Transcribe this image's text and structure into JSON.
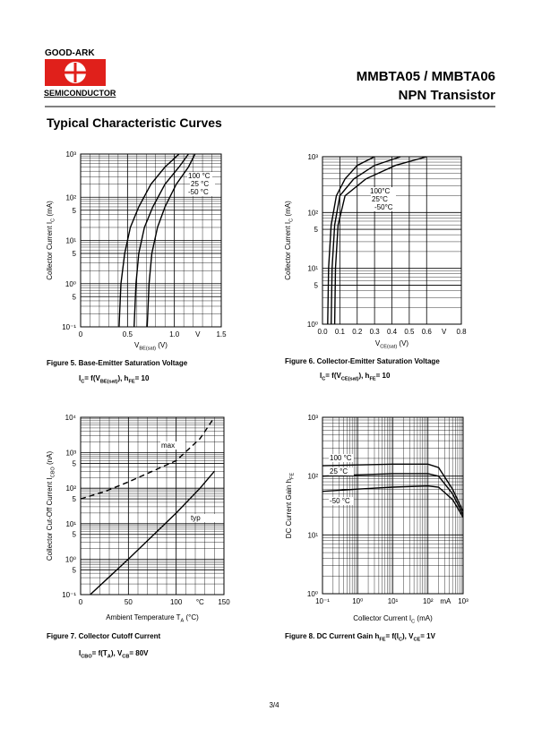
{
  "logo": {
    "top": "GOOD-ARK",
    "bottom": "SEMICONDUCTOR"
  },
  "header": {
    "part": "MMBTA05 / MMBTA06",
    "kind": "NPN Transistor"
  },
  "section_title": "Typical Characteristic Curves",
  "page_number": "3/4",
  "chart_data": [
    {
      "type": "line",
      "log_y": true,
      "log_x": false,
      "caption": [
        "Figure 5. Base-Emitter Saturation Voltage"
      ],
      "formula": [
        "I",
        {
          "sub": "C"
        },
        "= f(V",
        {
          "sub": "BE(sat)"
        },
        "), h",
        {
          "sub": "FE"
        },
        "= 10"
      ],
      "y_label": [
        "Collector Current I",
        {
          "sub": "C"
        },
        " (mA)"
      ],
      "x_label": [
        "V",
        {
          "sub": "BE(sat)"
        },
        " (V)"
      ],
      "x_unit": "V",
      "xlim": [
        0,
        1.5
      ],
      "xticks": [
        0,
        0.5,
        {
          "value": 1,
          "label": "1.0"
        },
        1.5
      ],
      "ylim": [
        0.1,
        1000
      ],
      "yticks": [
        {
          "value": 1000,
          "label": "10³"
        },
        {
          "value": 100,
          "label": "10²"
        },
        {
          "value": 50,
          "label": "5"
        },
        {
          "value": 10,
          "label": "10¹"
        },
        5,
        {
          "value": 1,
          "label": "10⁰"
        },
        {
          "value": 0.5,
          "label": "5"
        },
        {
          "value": 0.1,
          "label": "10⁻¹"
        }
      ],
      "grid": true,
      "series": [
        {
          "name": "100 °C",
          "color": "#000",
          "x": [
            0.41,
            0.43,
            0.47,
            0.53,
            0.62,
            0.75,
            0.9,
            1.05
          ],
          "values": [
            0.1,
            1,
            5,
            20,
            60,
            200,
            500,
            1000
          ]
        },
        {
          "name": "25 °C",
          "color": "#000",
          "x": [
            0.57,
            0.59,
            0.62,
            0.68,
            0.77,
            0.9,
            1.05,
            1.15
          ],
          "values": [
            0.1,
            1,
            5,
            20,
            60,
            200,
            500,
            1000
          ]
        },
        {
          "name": "-50 °C",
          "color": "#000",
          "x": [
            0.71,
            0.73,
            0.76,
            0.82,
            0.9,
            1.02,
            1.15,
            1.22
          ],
          "values": [
            0.1,
            1,
            5,
            20,
            60,
            200,
            500,
            1000
          ]
        }
      ]
    },
    {
      "type": "line",
      "log_y": true,
      "log_x": false,
      "caption": [
        "Figure 6. Collector-Emitter Saturation Voltage"
      ],
      "formula": [
        "I",
        {
          "sub": "C"
        },
        "= f(V",
        {
          "sub": "CE(sat)"
        },
        "), h",
        {
          "sub": "FE"
        },
        "= 10"
      ],
      "y_label": [
        "Collector Current I",
        {
          "sub": "C"
        },
        " (mA)"
      ],
      "x_label": [
        "V",
        {
          "sub": "CE(sat)"
        },
        " (V)"
      ],
      "x_unit": "V",
      "xlim": [
        0,
        0.8
      ],
      "xticks": [
        {
          "value": 0,
          "label": "0.0"
        },
        0.1,
        0.2,
        0.3,
        0.4,
        0.5,
        0.6,
        0.8
      ],
      "ylim": [
        1,
        1000
      ],
      "yticks": [
        {
          "value": 1000,
          "label": "10³"
        },
        {
          "value": 100,
          "label": "10²"
        },
        {
          "value": 50,
          "label": "5"
        },
        {
          "value": 10,
          "label": "10¹"
        },
        5,
        {
          "value": 1,
          "label": "10⁰"
        }
      ],
      "grid": true,
      "series": [
        {
          "name": "100°C",
          "color": "#000",
          "x": [
            0.03,
            0.035,
            0.05,
            0.08,
            0.13,
            0.2,
            0.3
          ],
          "values": [
            1,
            10,
            60,
            200,
            400,
            700,
            1000
          ]
        },
        {
          "name": "25°C",
          "color": "#000",
          "x": [
            0.05,
            0.055,
            0.07,
            0.1,
            0.18,
            0.3,
            0.45
          ],
          "values": [
            1,
            10,
            60,
            200,
            400,
            700,
            1000
          ]
        },
        {
          "name": "-50°C",
          "color": "#000",
          "x": [
            0.07,
            0.075,
            0.09,
            0.13,
            0.25,
            0.42,
            0.6
          ],
          "values": [
            1,
            10,
            60,
            200,
            400,
            700,
            1000
          ]
        }
      ]
    },
    {
      "type": "line",
      "log_y": true,
      "log_x": false,
      "caption": [
        "Figure 7. Collector Cutoff Current"
      ],
      "formula": [
        "I",
        {
          "sub": "CBO"
        },
        "= f(T",
        {
          "sub": "A"
        },
        "), V",
        {
          "sub": "CB"
        },
        "= 80V"
      ],
      "y_label": [
        "Collector Cut-Off Current I",
        {
          "sub": "CBO"
        },
        " (nA)"
      ],
      "x_label": [
        "Ambient Temperature T",
        {
          "sub": "A"
        },
        " (°C)"
      ],
      "x_unit": "°C",
      "xlim": [
        0,
        150
      ],
      "xticks": [
        0,
        50,
        100,
        150
      ],
      "ylim": [
        0.1,
        10000
      ],
      "yticks": [
        {
          "value": 10000,
          "label": "10⁴"
        },
        {
          "value": 1000,
          "label": "10³"
        },
        {
          "value": 500,
          "label": "5"
        },
        {
          "value": 100,
          "label": "10²"
        },
        {
          "value": 50,
          "label": "5"
        },
        {
          "value": 10,
          "label": "10¹"
        },
        5,
        {
          "value": 1,
          "label": "10⁰"
        },
        {
          "value": 0.5,
          "label": "5"
        },
        {
          "value": 0.1,
          "label": "10⁻¹"
        }
      ],
      "grid": true,
      "series": [
        {
          "name": "max",
          "color": "#000",
          "dash": true,
          "x": [
            0,
            25,
            50,
            75,
            100,
            125,
            140
          ],
          "values": [
            50,
            80,
            150,
            300,
            600,
            2500,
            10000
          ]
        },
        {
          "name": "typ",
          "color": "#000",
          "x": [
            10,
            50,
            100,
            125,
            140
          ],
          "values": [
            0.1,
            1,
            20,
            100,
            300
          ]
        }
      ]
    },
    {
      "type": "line",
      "log_y": true,
      "log_x": true,
      "caption": [
        "Figure 8. DC Current Gain h",
        {
          "sub": "FE"
        },
        "= f(I",
        {
          "sub": "C"
        },
        "), V",
        {
          "sub": "CE"
        },
        "= 1V"
      ],
      "y_label": [
        "DC Current Gain h",
        {
          "sub": "FE"
        }
      ],
      "x_label": [
        "Collector Current  I",
        {
          "sub": "C"
        },
        " (mA)"
      ],
      "x_unit": "mA",
      "xlim": [
        0.1,
        1000
      ],
      "xticks": [
        {
          "value": 0.1,
          "label": "10⁻¹"
        },
        {
          "value": 1,
          "label": "10⁰"
        },
        {
          "value": 10,
          "label": "10¹"
        },
        {
          "value": 100,
          "label": "10²"
        },
        {
          "value": 1000,
          "label": "10³"
        }
      ],
      "ylim": [
        1,
        1000
      ],
      "yticks": [
        {
          "value": 1000,
          "label": "10³"
        },
        {
          "value": 100,
          "label": "10²"
        },
        {
          "value": 10,
          "label": "10¹"
        },
        {
          "value": 1,
          "label": "10⁰"
        }
      ],
      "grid": true,
      "series": [
        {
          "name": "100 °C",
          "color": "#000",
          "x": [
            0.1,
            1,
            10,
            100,
            200,
            500,
            1000
          ],
          "values": [
            150,
            155,
            160,
            160,
            140,
            60,
            25
          ]
        },
        {
          "name": "25 °C",
          "color": "#000",
          "x": [
            0.1,
            1,
            10,
            100,
            200,
            500,
            1000
          ],
          "values": [
            100,
            105,
            110,
            110,
            100,
            50,
            22
          ]
        },
        {
          "name": "-50 °C",
          "color": "#000",
          "x": [
            0.1,
            1,
            10,
            100,
            200,
            500,
            1000
          ],
          "values": [
            55,
            60,
            65,
            68,
            65,
            40,
            20
          ]
        }
      ]
    }
  ]
}
